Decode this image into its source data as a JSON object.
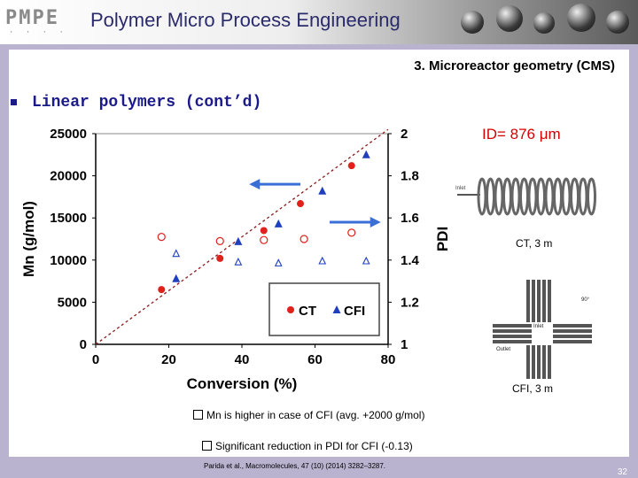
{
  "header": {
    "logo_text": "PMPE",
    "title": "Polymer Micro Process Engineering"
  },
  "slide": {
    "section_title": "3. Microreactor geometry (CMS)",
    "heading": "Linear polymers (cont’d)",
    "id_label": "ID= 876 μm",
    "coil_top_label": "CT, 3 m",
    "coil_bottom_label": "CFI, 3 m",
    "ct_inlet_text": "Inlet",
    "cfi_labels": [
      "90°",
      "Inlet",
      "Outlet"
    ],
    "notes": [
      "Mn is higher in case of CFI (avg. +2000 g/mol)",
      "Significant reduction in PDI for CFI (-0.13)"
    ],
    "citation": "Parida et al., Macromolecules, 47 (10) (2014) 3282–3287.",
    "page_number": "32"
  },
  "chart_data": {
    "type": "scatter",
    "xlabel": "Conversion (%)",
    "ylabel": "Mn (g/mol)",
    "y2label": "PDI",
    "xlim": [
      0,
      80
    ],
    "ylim": [
      0,
      25000
    ],
    "y2lim": [
      1,
      2
    ],
    "xticks": [
      "0",
      "20",
      "40",
      "60",
      "80"
    ],
    "yticks": [
      "0",
      "5000",
      "10000",
      "15000",
      "20000",
      "25000"
    ],
    "y2ticks": [
      "1",
      "1.2",
      "1.4",
      "1.6",
      "1.8",
      "2"
    ],
    "legend": {
      "position": "bottom-right",
      "entries": [
        "CT",
        "CFI"
      ]
    },
    "colors": {
      "CT": "#e0201b",
      "CFI": "#1f3fbf",
      "trend": "#8b1a1a",
      "arrow": "#3a6fd8"
    },
    "series": [
      {
        "name": "CT",
        "marker": "filled-circle",
        "axis": "left",
        "x": [
          18,
          34,
          46,
          56,
          70
        ],
        "y": [
          6500,
          10200,
          13500,
          16700,
          21200
        ]
      },
      {
        "name": "CFI",
        "marker": "filled-triangle",
        "axis": "left",
        "x": [
          22,
          39,
          50,
          62,
          74
        ],
        "y": [
          7800,
          12200,
          14300,
          18200,
          22500
        ]
      },
      {
        "name": "CT",
        "marker": "open-circle",
        "axis": "right",
        "x": [
          18,
          34,
          46,
          57,
          70
        ],
        "y": [
          1.51,
          1.49,
          1.495,
          1.5,
          1.53
        ]
      },
      {
        "name": "CFI",
        "marker": "open-triangle",
        "axis": "right",
        "x": [
          22,
          39,
          50,
          62,
          74
        ],
        "y": [
          1.43,
          1.39,
          1.385,
          1.395,
          1.395
        ]
      }
    ],
    "trendline": {
      "x": [
        0,
        80
      ],
      "y": [
        0,
        25500
      ]
    }
  }
}
